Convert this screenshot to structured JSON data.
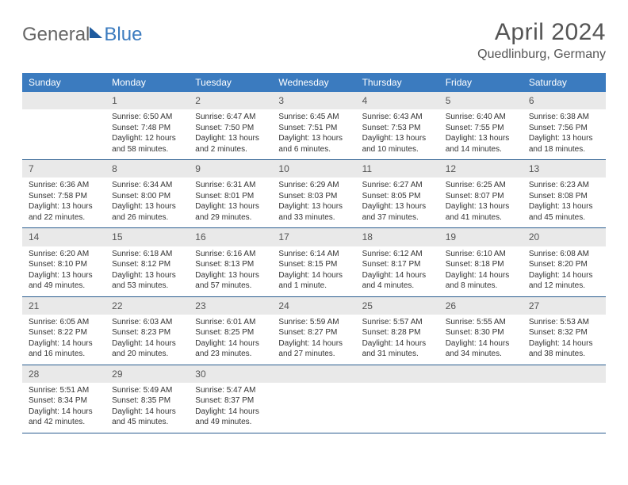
{
  "brand": {
    "text1": "General",
    "text2": "Blue"
  },
  "title": "April 2024",
  "location": "Quedlinburg, Germany",
  "colors": {
    "header_bg": "#3b7bbf",
    "week_border": "#2a5d8f",
    "daynum_bg": "#e9e9e9",
    "text": "#333333",
    "title_color": "#555555"
  },
  "dayNames": [
    "Sunday",
    "Monday",
    "Tuesday",
    "Wednesday",
    "Thursday",
    "Friday",
    "Saturday"
  ],
  "weeks": [
    [
      null,
      {
        "n": "1",
        "sr": "Sunrise: 6:50 AM",
        "ss": "Sunset: 7:48 PM",
        "dl": "Daylight: 12 hours and 58 minutes."
      },
      {
        "n": "2",
        "sr": "Sunrise: 6:47 AM",
        "ss": "Sunset: 7:50 PM",
        "dl": "Daylight: 13 hours and 2 minutes."
      },
      {
        "n": "3",
        "sr": "Sunrise: 6:45 AM",
        "ss": "Sunset: 7:51 PM",
        "dl": "Daylight: 13 hours and 6 minutes."
      },
      {
        "n": "4",
        "sr": "Sunrise: 6:43 AM",
        "ss": "Sunset: 7:53 PM",
        "dl": "Daylight: 13 hours and 10 minutes."
      },
      {
        "n": "5",
        "sr": "Sunrise: 6:40 AM",
        "ss": "Sunset: 7:55 PM",
        "dl": "Daylight: 13 hours and 14 minutes."
      },
      {
        "n": "6",
        "sr": "Sunrise: 6:38 AM",
        "ss": "Sunset: 7:56 PM",
        "dl": "Daylight: 13 hours and 18 minutes."
      }
    ],
    [
      {
        "n": "7",
        "sr": "Sunrise: 6:36 AM",
        "ss": "Sunset: 7:58 PM",
        "dl": "Daylight: 13 hours and 22 minutes."
      },
      {
        "n": "8",
        "sr": "Sunrise: 6:34 AM",
        "ss": "Sunset: 8:00 PM",
        "dl": "Daylight: 13 hours and 26 minutes."
      },
      {
        "n": "9",
        "sr": "Sunrise: 6:31 AM",
        "ss": "Sunset: 8:01 PM",
        "dl": "Daylight: 13 hours and 29 minutes."
      },
      {
        "n": "10",
        "sr": "Sunrise: 6:29 AM",
        "ss": "Sunset: 8:03 PM",
        "dl": "Daylight: 13 hours and 33 minutes."
      },
      {
        "n": "11",
        "sr": "Sunrise: 6:27 AM",
        "ss": "Sunset: 8:05 PM",
        "dl": "Daylight: 13 hours and 37 minutes."
      },
      {
        "n": "12",
        "sr": "Sunrise: 6:25 AM",
        "ss": "Sunset: 8:07 PM",
        "dl": "Daylight: 13 hours and 41 minutes."
      },
      {
        "n": "13",
        "sr": "Sunrise: 6:23 AM",
        "ss": "Sunset: 8:08 PM",
        "dl": "Daylight: 13 hours and 45 minutes."
      }
    ],
    [
      {
        "n": "14",
        "sr": "Sunrise: 6:20 AM",
        "ss": "Sunset: 8:10 PM",
        "dl": "Daylight: 13 hours and 49 minutes."
      },
      {
        "n": "15",
        "sr": "Sunrise: 6:18 AM",
        "ss": "Sunset: 8:12 PM",
        "dl": "Daylight: 13 hours and 53 minutes."
      },
      {
        "n": "16",
        "sr": "Sunrise: 6:16 AM",
        "ss": "Sunset: 8:13 PM",
        "dl": "Daylight: 13 hours and 57 minutes."
      },
      {
        "n": "17",
        "sr": "Sunrise: 6:14 AM",
        "ss": "Sunset: 8:15 PM",
        "dl": "Daylight: 14 hours and 1 minute."
      },
      {
        "n": "18",
        "sr": "Sunrise: 6:12 AM",
        "ss": "Sunset: 8:17 PM",
        "dl": "Daylight: 14 hours and 4 minutes."
      },
      {
        "n": "19",
        "sr": "Sunrise: 6:10 AM",
        "ss": "Sunset: 8:18 PM",
        "dl": "Daylight: 14 hours and 8 minutes."
      },
      {
        "n": "20",
        "sr": "Sunrise: 6:08 AM",
        "ss": "Sunset: 8:20 PM",
        "dl": "Daylight: 14 hours and 12 minutes."
      }
    ],
    [
      {
        "n": "21",
        "sr": "Sunrise: 6:05 AM",
        "ss": "Sunset: 8:22 PM",
        "dl": "Daylight: 14 hours and 16 minutes."
      },
      {
        "n": "22",
        "sr": "Sunrise: 6:03 AM",
        "ss": "Sunset: 8:23 PM",
        "dl": "Daylight: 14 hours and 20 minutes."
      },
      {
        "n": "23",
        "sr": "Sunrise: 6:01 AM",
        "ss": "Sunset: 8:25 PM",
        "dl": "Daylight: 14 hours and 23 minutes."
      },
      {
        "n": "24",
        "sr": "Sunrise: 5:59 AM",
        "ss": "Sunset: 8:27 PM",
        "dl": "Daylight: 14 hours and 27 minutes."
      },
      {
        "n": "25",
        "sr": "Sunrise: 5:57 AM",
        "ss": "Sunset: 8:28 PM",
        "dl": "Daylight: 14 hours and 31 minutes."
      },
      {
        "n": "26",
        "sr": "Sunrise: 5:55 AM",
        "ss": "Sunset: 8:30 PM",
        "dl": "Daylight: 14 hours and 34 minutes."
      },
      {
        "n": "27",
        "sr": "Sunrise: 5:53 AM",
        "ss": "Sunset: 8:32 PM",
        "dl": "Daylight: 14 hours and 38 minutes."
      }
    ],
    [
      {
        "n": "28",
        "sr": "Sunrise: 5:51 AM",
        "ss": "Sunset: 8:34 PM",
        "dl": "Daylight: 14 hours and 42 minutes."
      },
      {
        "n": "29",
        "sr": "Sunrise: 5:49 AM",
        "ss": "Sunset: 8:35 PM",
        "dl": "Daylight: 14 hours and 45 minutes."
      },
      {
        "n": "30",
        "sr": "Sunrise: 5:47 AM",
        "ss": "Sunset: 8:37 PM",
        "dl": "Daylight: 14 hours and 49 minutes."
      },
      null,
      null,
      null,
      null
    ]
  ]
}
